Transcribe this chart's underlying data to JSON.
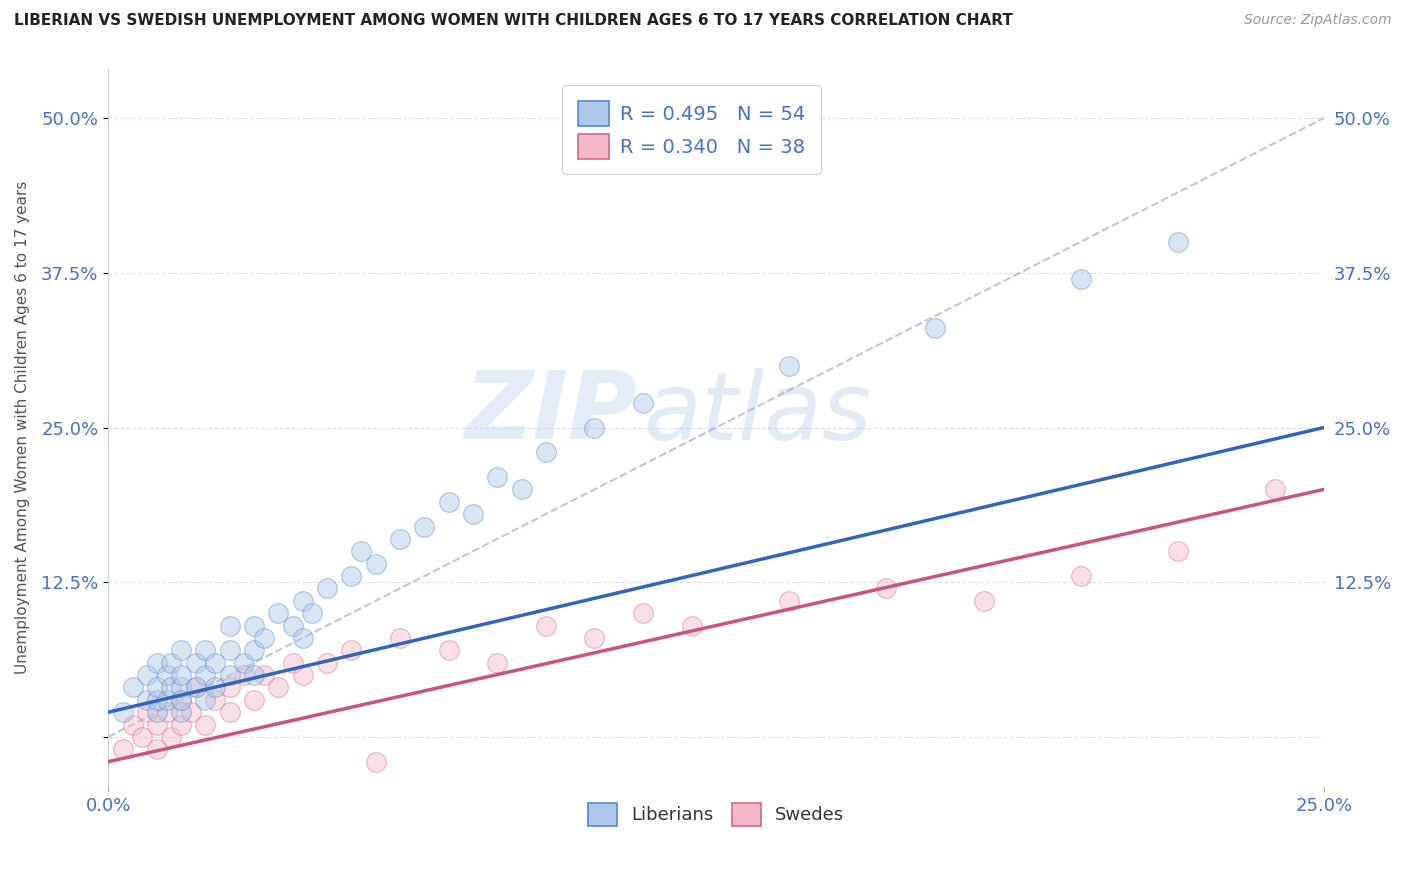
{
  "title": "LIBERIAN VS SWEDISH UNEMPLOYMENT AMONG WOMEN WITH CHILDREN AGES 6 TO 17 YEARS CORRELATION CHART",
  "source": "Source: ZipAtlas.com",
  "ylabel": "Unemployment Among Women with Children Ages 6 to 17 years",
  "xlim": [
    0.0,
    0.25
  ],
  "ylim": [
    -0.04,
    0.54
  ],
  "yticks": [
    0.0,
    0.125,
    0.25,
    0.375,
    0.5
  ],
  "ytick_labels_left": [
    "",
    "12.5%",
    "25.0%",
    "37.5%",
    "50.0%"
  ],
  "ytick_labels_right": [
    "",
    "12.5%",
    "25.0%",
    "37.5%",
    "50.0%"
  ],
  "xticks": [
    0.0,
    0.25
  ],
  "xtick_labels": [
    "0.0%",
    "25.0%"
  ],
  "background_color": "#ffffff",
  "grid_color": "#d0d8e8",
  "liberian_fill": "#aec6e8",
  "liberian_edge": "#5588cc",
  "swedish_fill": "#f4b8c8",
  "swedish_edge": "#d06888",
  "liberian_line_color": "#3366bb",
  "swedish_line_color": "#cc5577",
  "legend_R_liberian": "0.495",
  "legend_N_liberian": "54",
  "legend_R_swedish": "0.340",
  "legend_N_swedish": "38",
  "liberian_scatter_x": [
    0.003,
    0.005,
    0.008,
    0.008,
    0.01,
    0.01,
    0.01,
    0.01,
    0.012,
    0.012,
    0.013,
    0.013,
    0.015,
    0.015,
    0.015,
    0.015,
    0.015,
    0.018,
    0.018,
    0.02,
    0.02,
    0.02,
    0.022,
    0.022,
    0.025,
    0.025,
    0.025,
    0.028,
    0.03,
    0.03,
    0.03,
    0.032,
    0.035,
    0.038,
    0.04,
    0.04,
    0.042,
    0.045,
    0.05,
    0.052,
    0.055,
    0.06,
    0.065,
    0.07,
    0.075,
    0.08,
    0.085,
    0.09,
    0.1,
    0.11,
    0.14,
    0.17,
    0.2,
    0.22
  ],
  "liberian_scatter_y": [
    0.02,
    0.04,
    0.03,
    0.05,
    0.02,
    0.03,
    0.04,
    0.06,
    0.03,
    0.05,
    0.04,
    0.06,
    0.02,
    0.03,
    0.04,
    0.05,
    0.07,
    0.04,
    0.06,
    0.03,
    0.05,
    0.07,
    0.04,
    0.06,
    0.05,
    0.07,
    0.09,
    0.06,
    0.05,
    0.07,
    0.09,
    0.08,
    0.1,
    0.09,
    0.08,
    0.11,
    0.1,
    0.12,
    0.13,
    0.15,
    0.14,
    0.16,
    0.17,
    0.19,
    0.18,
    0.21,
    0.2,
    0.23,
    0.25,
    0.27,
    0.3,
    0.33,
    0.37,
    0.4
  ],
  "swedish_scatter_x": [
    0.003,
    0.005,
    0.007,
    0.008,
    0.01,
    0.01,
    0.012,
    0.013,
    0.015,
    0.015,
    0.017,
    0.018,
    0.02,
    0.022,
    0.025,
    0.025,
    0.028,
    0.03,
    0.032,
    0.035,
    0.038,
    0.04,
    0.045,
    0.05,
    0.055,
    0.06,
    0.07,
    0.08,
    0.09,
    0.1,
    0.11,
    0.12,
    0.14,
    0.16,
    0.18,
    0.2,
    0.22,
    0.24
  ],
  "swedish_scatter_y": [
    -0.01,
    0.01,
    0.0,
    0.02,
    -0.01,
    0.01,
    0.02,
    0.0,
    0.01,
    0.03,
    0.02,
    0.04,
    0.01,
    0.03,
    0.02,
    0.04,
    0.05,
    0.03,
    0.05,
    0.04,
    0.06,
    0.05,
    0.06,
    0.07,
    -0.02,
    0.08,
    0.07,
    0.06,
    0.09,
    0.08,
    0.1,
    0.09,
    0.11,
    0.12,
    0.11,
    0.13,
    0.15,
    0.2
  ],
  "liberian_trendline_x": [
    0.0,
    0.25
  ],
  "liberian_trendline_y": [
    0.02,
    0.25
  ],
  "swedish_trendline_x": [
    0.0,
    0.25
  ],
  "swedish_trendline_y": [
    -0.02,
    0.2
  ],
  "ref_line_x": [
    0.0,
    0.25
  ],
  "ref_line_y": [
    0.0,
    0.5
  ],
  "watermark_zip": "ZIP",
  "watermark_atlas": "atlas",
  "marker_size": 200,
  "marker_alpha": 0.45
}
